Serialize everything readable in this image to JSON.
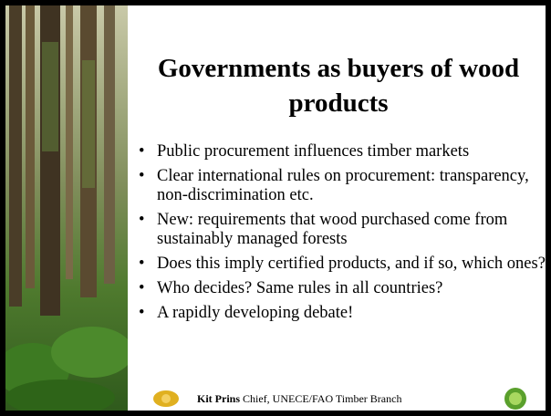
{
  "slide": {
    "title": "Governments as buyers of wood products",
    "bullets": [
      "Public procurement influences timber markets",
      "Clear international rules on procurement: transparency, non-discrimination etc.",
      "New: requirements that wood purchased come from sustainably managed forests",
      "Does this imply certified products, and if so, which ones?",
      "Who decides?  Same rules in all countries?",
      "A rapidly developing debate!"
    ],
    "footer": {
      "name": "Kit Prins",
      "role": "Chief, UNECE/FAO Timber Branch"
    }
  }
}
